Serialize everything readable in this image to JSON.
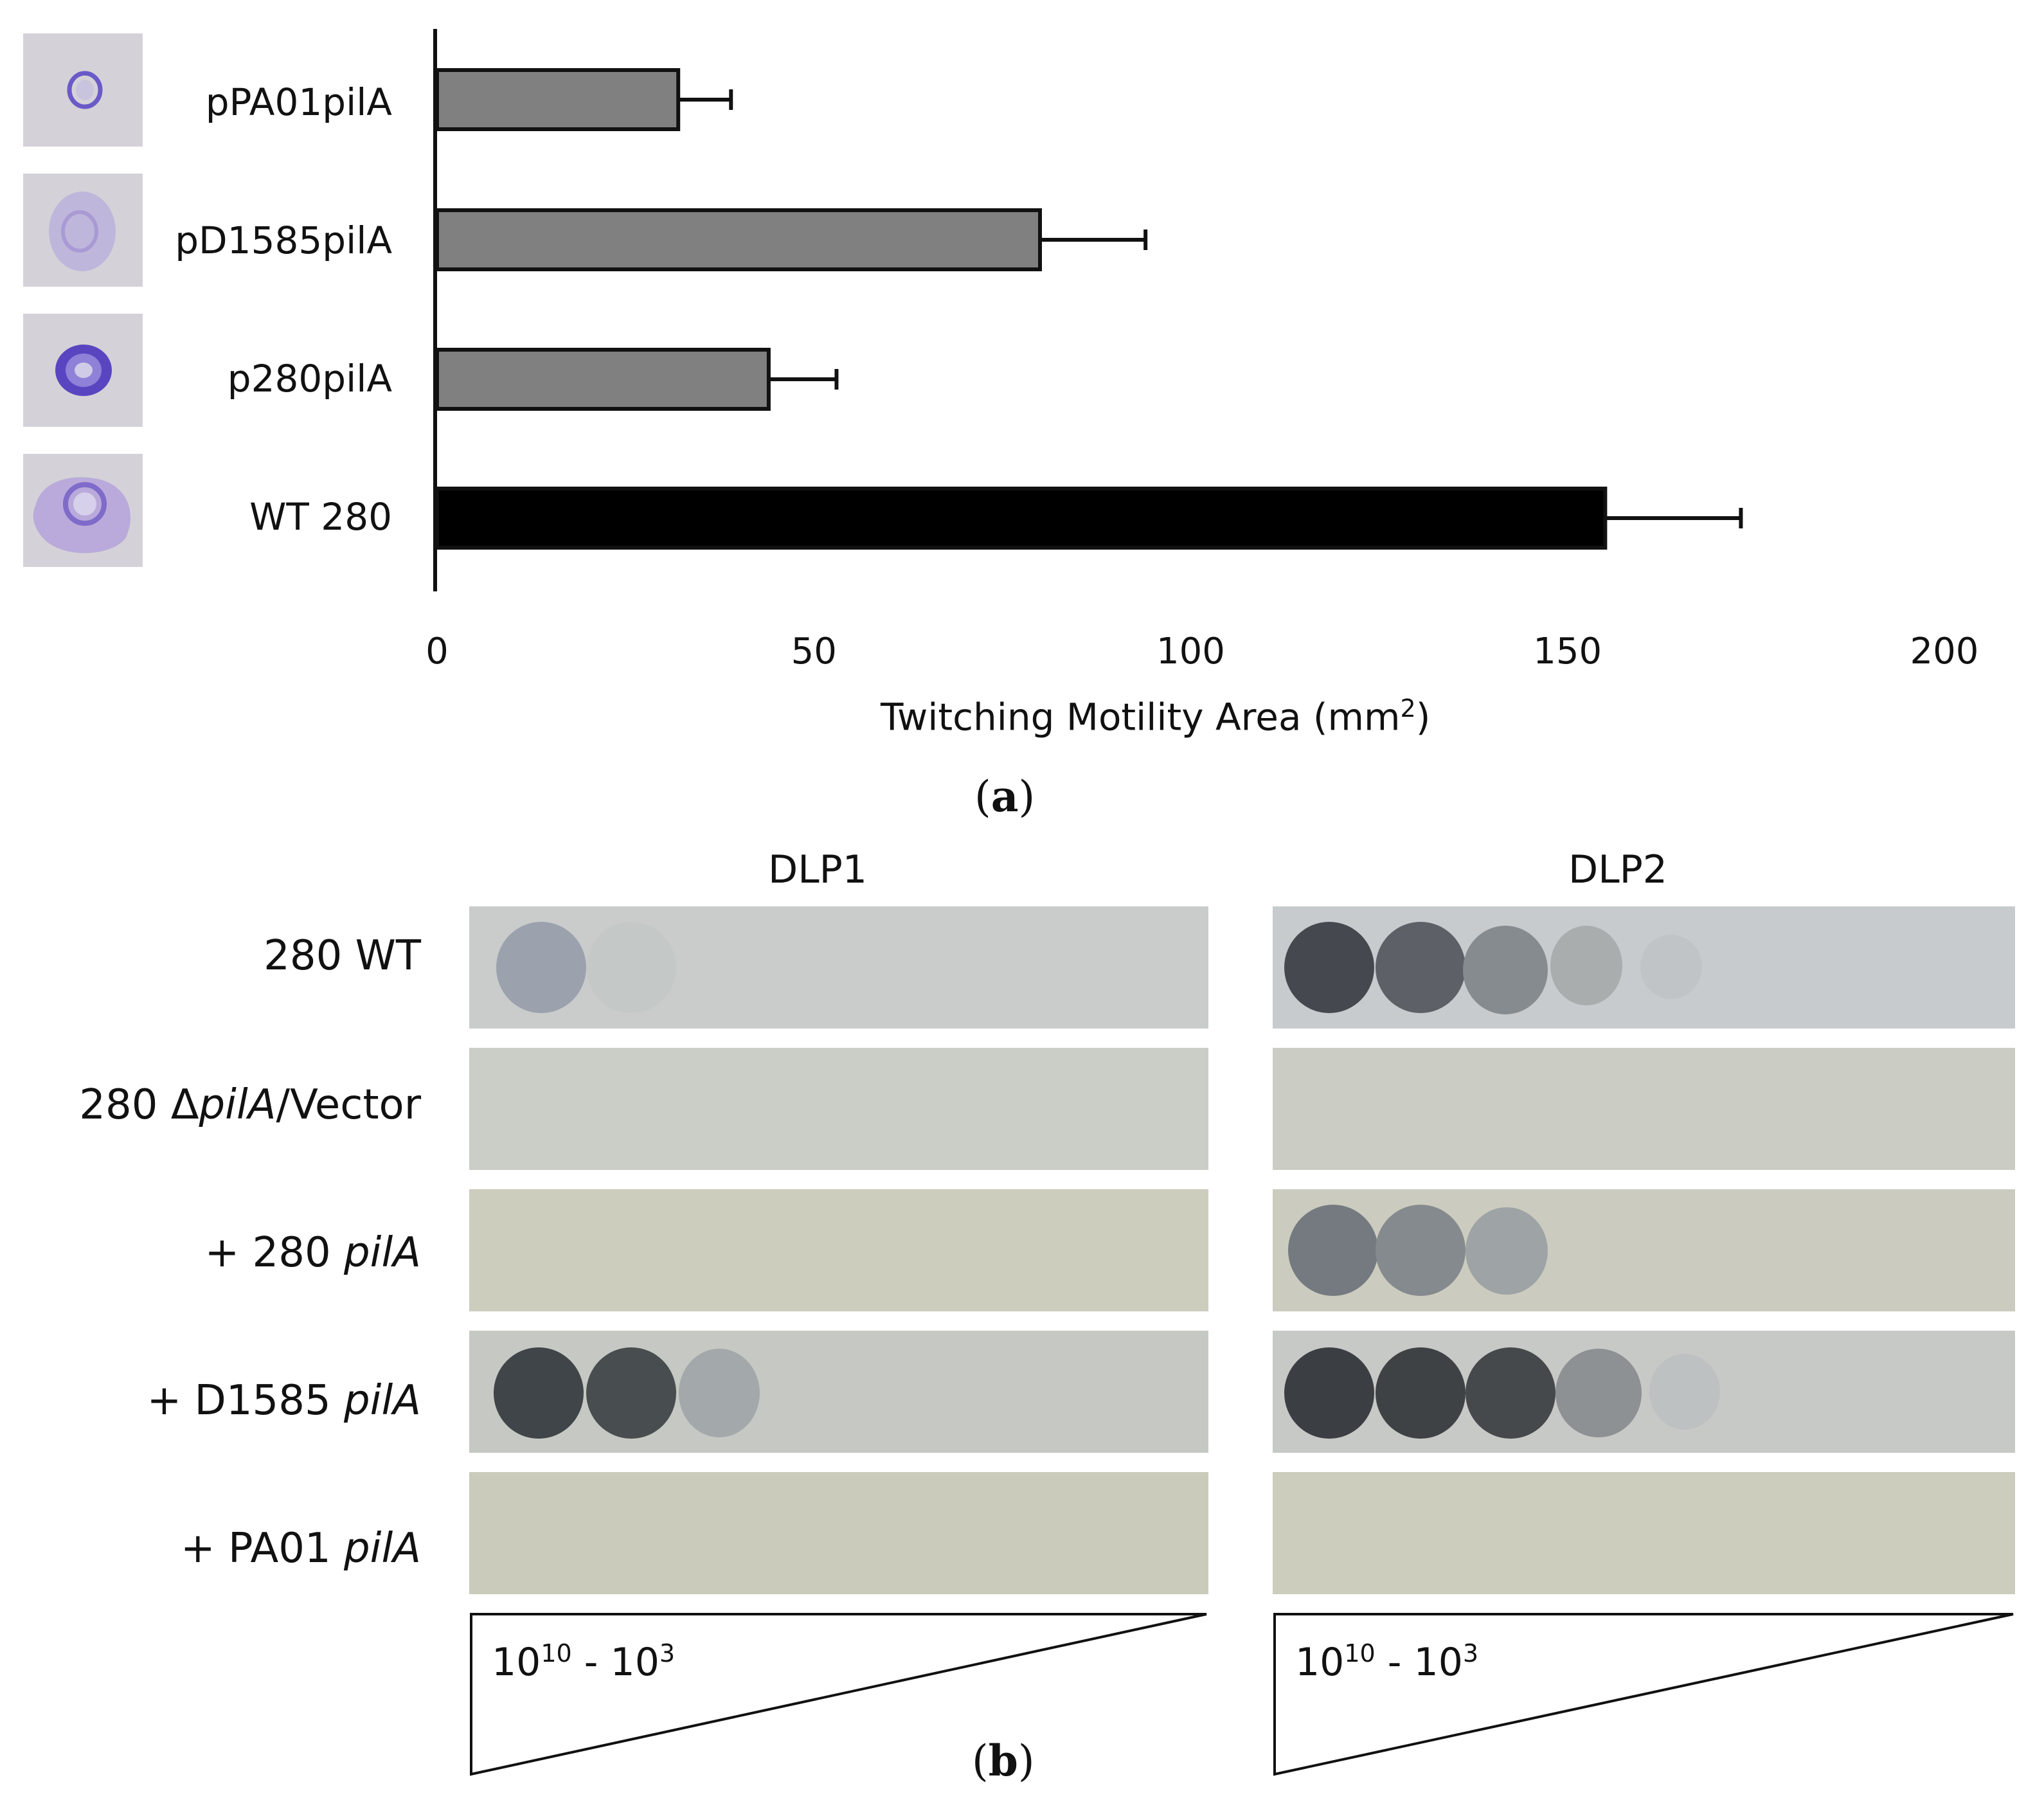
{
  "panel_a": {
    "chart_data": {
      "type": "bar",
      "orientation": "horizontal",
      "categories": [
        "pPA01pilA",
        "pD1585pilA",
        "p280pilA",
        "WT 280"
      ],
      "values": [
        32,
        80,
        44,
        155
      ],
      "errors": [
        7,
        14,
        9,
        18
      ],
      "colors": [
        "#808080",
        "#808080",
        "#808080",
        "#000000"
      ],
      "xlabel": "Twitching Motility Area (mm",
      "xlabel_sup": "2",
      "xlabel_end": ")",
      "xlim": [
        0,
        200
      ],
      "xticks": [
        "0",
        "50",
        "100",
        "150",
        "200"
      ],
      "grid": false,
      "legend": "none"
    },
    "letter": "a"
  },
  "panel_b": {
    "columns": [
      "DLP1",
      "DLP2"
    ],
    "rows": [
      {
        "prefix": "280 WT",
        "italic": "",
        "suffix": ""
      },
      {
        "prefix": "280 Δ",
        "italic": "pilA",
        "suffix": "/Vector"
      },
      {
        "prefix": "+ 280 ",
        "italic": "pilA",
        "suffix": ""
      },
      {
        "prefix": "+ D1585 ",
        "italic": "pilA",
        "suffix": ""
      },
      {
        "prefix": "+ PA01 ",
        "italic": "pilA",
        "suffix": ""
      }
    ],
    "range_base": "10",
    "range_high_exp": "10",
    "range_sep": " - 10",
    "range_low_exp": "3",
    "letter": "b"
  },
  "colors": {
    "plate": "#cdcdc1",
    "bar_gray": "#808080",
    "bar_black": "#000000",
    "stain": "#5a45c0"
  }
}
